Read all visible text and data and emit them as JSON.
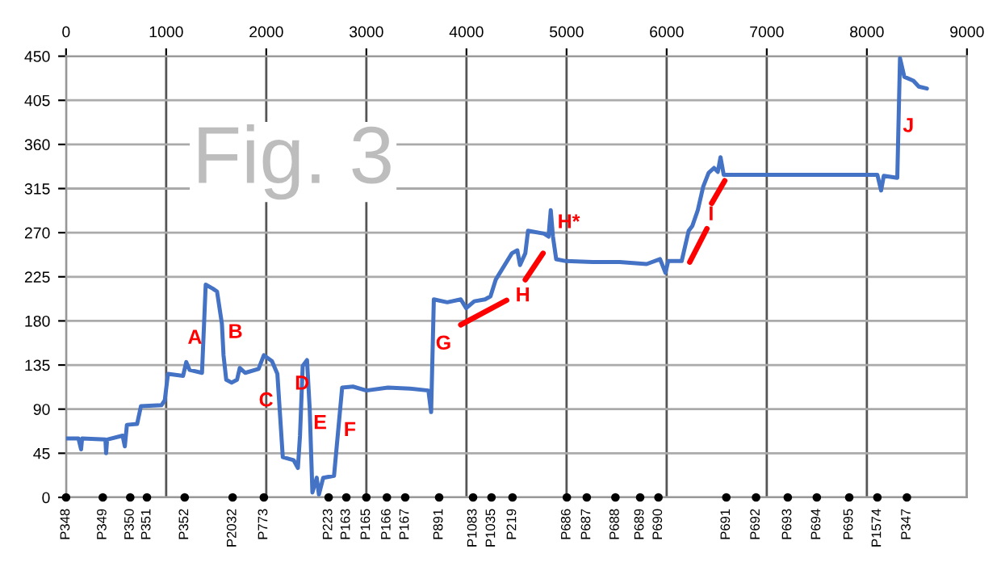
{
  "chart_data": {
    "type": "line",
    "xlim": [
      0,
      9000
    ],
    "ylim": [
      0,
      450
    ],
    "yticks": [
      0,
      45,
      90,
      135,
      180,
      225,
      270,
      315,
      360,
      405,
      450
    ],
    "xticks": [
      0,
      1000,
      2000,
      3000,
      4000,
      5000,
      6000,
      7000,
      8000,
      9000
    ],
    "grid": true,
    "series": [
      {
        "color": "#4472c4",
        "x": [
          0,
          124,
          150,
          160,
          393,
          400,
          410,
          565,
          587,
          608,
          710,
          748,
          953,
          986,
          1018,
          1169,
          1201,
          1234,
          1358,
          1395,
          1465,
          1508,
          1557,
          1573,
          1600,
          1654,
          1708,
          1735,
          1789,
          1923,
          1976,
          2057,
          2111,
          2165,
          2273,
          2316,
          2337,
          2364,
          2407,
          2434,
          2461,
          2504,
          2526,
          2569,
          2677,
          2704,
          2758,
          2866,
          3000,
          3216,
          3432,
          3620,
          3647,
          3674,
          3808,
          3943,
          3997,
          4078,
          4186,
          4240,
          4292,
          4454,
          4508,
          4535,
          4588,
          4615,
          4776,
          4820,
          4842,
          4864,
          4896,
          4993,
          5262,
          5531,
          5800,
          5934,
          5988,
          6015,
          6150,
          6220,
          6257,
          6311,
          6365,
          6419,
          6473,
          6511,
          6538,
          6570,
          6877,
          7415,
          7954,
          8105,
          8142,
          8169,
          8304,
          8331,
          8374,
          8465,
          8519,
          8600
        ],
        "values": [
          60,
          60,
          49,
          60,
          59,
          45,
          59,
          63,
          52,
          74,
          75,
          93,
          94,
          99,
          126,
          124,
          138,
          130,
          127,
          217,
          213,
          210,
          177,
          145,
          120,
          117,
          120,
          132,
          127,
          131,
          145,
          139,
          126,
          41,
          38,
          30,
          63,
          134,
          140,
          90,
          5,
          20,
          3,
          20,
          22,
          52,
          112,
          113,
          109,
          112,
          111,
          109,
          87,
          202,
          199,
          202,
          193,
          200,
          202,
          205,
          222,
          249,
          252,
          237,
          249,
          272,
          269,
          266,
          293,
          266,
          243,
          241,
          240,
          240,
          238,
          243,
          229,
          241,
          241,
          272,
          277,
          293,
          317,
          331,
          336,
          332,
          347,
          329,
          329,
          329,
          329,
          329,
          313,
          328,
          326,
          448,
          429,
          425,
          419,
          417
        ]
      },
      {
        "color": "#ff0000",
        "x": [
          3943,
          4401,
          4500,
          4588,
          4765,
          5000,
          6231,
          6402,
          6420,
          6450,
          6580
        ],
        "values": [
          176,
          201,
          null,
          222,
          249,
          null,
          240,
          274,
          null,
          300,
          323
        ]
      },
      {
        "type": "scatter",
        "color": "#000000",
        "x": [
          0,
          367,
          641,
          808,
          1185,
          1664,
          1976,
          2623,
          2800,
          3000,
          3205,
          3388,
          3727,
          4066,
          4250,
          4460,
          5003,
          5202,
          5488,
          5735,
          5918,
          6596,
          6893,
          7210,
          7500,
          7824,
          8105,
          8400
        ],
        "values": [
          0,
          0,
          0,
          0,
          0,
          0,
          0,
          0,
          0,
          0,
          0,
          0,
          0,
          0,
          0,
          0,
          0,
          0,
          0,
          0,
          0,
          0,
          0,
          0,
          0,
          0,
          0,
          0
        ],
        "value_labels": [
          "P348",
          "P349",
          "P350",
          "P351",
          "P352",
          "P2032",
          "P773",
          "P223",
          "P163",
          "P165",
          "P166",
          "P167",
          "P891",
          "P1083",
          "P1035",
          "P219",
          "P686",
          "P687",
          "P688",
          "P689",
          "P690",
          "P691",
          "P692",
          "P693",
          "P694",
          "P695",
          "P1574",
          "P347"
        ]
      }
    ],
    "annotations": [
      "Fig. 3",
      "A",
      "B",
      "C",
      "D",
      "E",
      "F",
      "G",
      "H",
      "H*",
      "I",
      "J"
    ]
  }
}
